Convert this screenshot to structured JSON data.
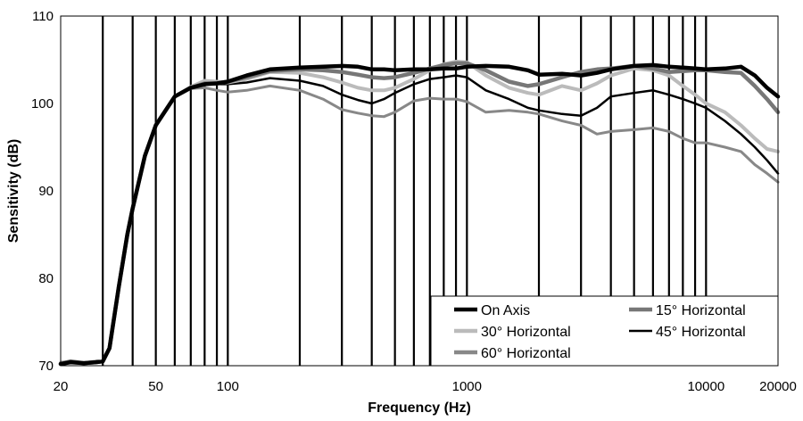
{
  "chart_data": {
    "type": "line",
    "title": "",
    "xlabel": "Frequency (Hz)",
    "ylabel": "Sensitivity (dB)",
    "x_scale": "log",
    "xlim": [
      20,
      20000
    ],
    "ylim": [
      70,
      110
    ],
    "x_tick_labels": [
      {
        "value": 20,
        "label": "20"
      },
      {
        "value": 50,
        "label": "50"
      },
      {
        "value": 100,
        "label": "100"
      },
      {
        "value": 1000,
        "label": "1000"
      },
      {
        "value": 10000,
        "label": "10000"
      },
      {
        "value": 20000,
        "label": "20000"
      }
    ],
    "y_ticks": [
      70,
      80,
      90,
      100,
      110
    ],
    "x_gridlines": [
      30,
      40,
      50,
      60,
      70,
      80,
      90,
      100,
      200,
      300,
      400,
      500,
      600,
      700,
      800,
      900,
      1000,
      2000,
      3000,
      4000,
      5000,
      6000,
      7000,
      8000,
      9000,
      10000
    ],
    "grid": {
      "x": true,
      "y": false
    },
    "legend_position": "bottom-right",
    "series": [
      {
        "name": "On Axis",
        "color": "#000000",
        "x": [
          20,
          22,
          25,
          28,
          30,
          32,
          35,
          38,
          40,
          45,
          50,
          60,
          70,
          80,
          90,
          100,
          120,
          150,
          200,
          250,
          300,
          350,
          400,
          450,
          500,
          600,
          700,
          800,
          900,
          1000,
          1200,
          1500,
          1800,
          2000,
          2500,
          3000,
          3500,
          4000,
          5000,
          6000,
          7000,
          8000,
          9000,
          10000,
          12000,
          14000,
          16000,
          18000,
          20000
        ],
        "y": [
          70.2,
          70.4,
          70.3,
          70.4,
          70.5,
          72,
          79,
          85,
          88,
          94,
          97.5,
          100.8,
          101.8,
          102.2,
          102.3,
          102.5,
          103.2,
          103.9,
          104.1,
          104.2,
          104.3,
          104.2,
          103.9,
          103.9,
          103.8,
          103.9,
          103.9,
          104.0,
          104.0,
          104.2,
          104.3,
          104.2,
          103.8,
          103.3,
          103.4,
          103.2,
          103.5,
          103.9,
          104.3,
          104.4,
          104.2,
          104.1,
          104.0,
          103.9,
          104.0,
          104.2,
          103.2,
          101.8,
          100.8
        ]
      },
      {
        "name": "15° Horizontal",
        "color": "#777777",
        "x": [
          20,
          22,
          25,
          28,
          30,
          32,
          35,
          38,
          40,
          45,
          50,
          60,
          70,
          80,
          90,
          100,
          120,
          150,
          200,
          250,
          300,
          350,
          400,
          450,
          500,
          600,
          700,
          800,
          900,
          1000,
          1200,
          1500,
          1800,
          2000,
          2500,
          3000,
          3500,
          4000,
          5000,
          6000,
          7000,
          8000,
          9000,
          10000,
          12000,
          14000,
          16000,
          18000,
          20000
        ],
        "y": [
          70.2,
          70.5,
          70.3,
          70.4,
          70.5,
          72,
          79,
          85,
          88,
          94,
          97.5,
          100.8,
          101.8,
          102.3,
          102.3,
          102.5,
          103.0,
          103.7,
          103.9,
          103.8,
          103.6,
          103.3,
          103.0,
          102.9,
          103.0,
          103.5,
          104.0,
          104.4,
          104.6,
          104.6,
          103.8,
          102.5,
          102.0,
          102.2,
          103.0,
          103.6,
          103.9,
          104.0,
          104.3,
          104.0,
          103.6,
          103.7,
          103.8,
          103.8,
          103.6,
          103.5,
          102.0,
          100.5,
          99.0
        ]
      },
      {
        "name": "30° Horizontal",
        "color": "#bbbbbb",
        "x": [
          20,
          22,
          25,
          28,
          30,
          32,
          35,
          38,
          40,
          45,
          50,
          60,
          70,
          80,
          90,
          100,
          120,
          150,
          200,
          250,
          300,
          350,
          400,
          450,
          500,
          600,
          700,
          800,
          900,
          1000,
          1200,
          1500,
          1800,
          2000,
          2500,
          3000,
          3500,
          4000,
          5000,
          6000,
          7000,
          8000,
          9000,
          10000,
          12000,
          14000,
          16000,
          18000,
          20000
        ],
        "y": [
          70.3,
          70.4,
          70.3,
          70.5,
          70.5,
          72,
          79,
          85,
          88,
          94,
          97.5,
          100.8,
          101.9,
          102.6,
          102.5,
          102.4,
          102.8,
          103.6,
          103.5,
          103.0,
          102.4,
          101.8,
          101.5,
          101.5,
          101.8,
          102.8,
          103.8,
          104.5,
          104.8,
          104.7,
          103.2,
          101.8,
          101.2,
          101.0,
          102.0,
          101.5,
          102.3,
          103.2,
          104.0,
          103.8,
          103.2,
          102.0,
          101.0,
          100.0,
          99.0,
          97.5,
          96.0,
          94.8,
          94.5
        ]
      },
      {
        "name": "45° Horizontal",
        "color": "#000000",
        "x": [
          20,
          22,
          25,
          28,
          30,
          32,
          35,
          38,
          40,
          45,
          50,
          60,
          70,
          80,
          90,
          100,
          120,
          150,
          200,
          250,
          300,
          350,
          400,
          450,
          500,
          600,
          700,
          800,
          900,
          1000,
          1200,
          1500,
          1800,
          2000,
          2500,
          3000,
          3500,
          4000,
          5000,
          6000,
          7000,
          8000,
          9000,
          10000,
          12000,
          14000,
          16000,
          18000,
          20000
        ],
        "y": [
          70.3,
          70.5,
          70.3,
          70.4,
          70.5,
          72,
          79,
          85,
          88,
          94,
          97.5,
          100.8,
          101.8,
          102.2,
          102.2,
          102.2,
          102.4,
          102.9,
          102.6,
          102.0,
          101.0,
          100.4,
          100.0,
          100.5,
          101.2,
          102.2,
          102.8,
          103.0,
          103.2,
          103.0,
          101.5,
          100.5,
          99.5,
          99.2,
          98.8,
          98.6,
          99.5,
          100.8,
          101.2,
          101.5,
          101.0,
          100.5,
          100.0,
          99.5,
          98.0,
          96.5,
          95.0,
          93.5,
          92.0
        ]
      },
      {
        "name": "60° Horizontal",
        "color": "#888888",
        "x": [
          20,
          22,
          25,
          28,
          30,
          32,
          35,
          38,
          40,
          45,
          50,
          60,
          70,
          80,
          90,
          100,
          120,
          150,
          200,
          250,
          300,
          350,
          400,
          450,
          500,
          600,
          700,
          800,
          900,
          1000,
          1200,
          1500,
          1800,
          2000,
          2500,
          3000,
          3500,
          4000,
          5000,
          6000,
          7000,
          8000,
          9000,
          10000,
          12000,
          14000,
          16000,
          18000,
          20000
        ],
        "y": [
          70.4,
          70.5,
          70.3,
          70.5,
          70.5,
          72,
          79,
          85,
          88,
          94,
          97.5,
          100.8,
          101.7,
          101.8,
          101.5,
          101.3,
          101.5,
          102.0,
          101.5,
          100.5,
          99.3,
          98.9,
          98.6,
          98.5,
          99.0,
          100.3,
          100.6,
          100.5,
          100.5,
          100.2,
          99.0,
          99.2,
          99.0,
          98.8,
          98.0,
          97.5,
          96.5,
          96.8,
          97.0,
          97.2,
          96.8,
          96.0,
          95.5,
          95.5,
          95.0,
          94.5,
          93.0,
          92.0,
          91.0
        ]
      }
    ]
  }
}
